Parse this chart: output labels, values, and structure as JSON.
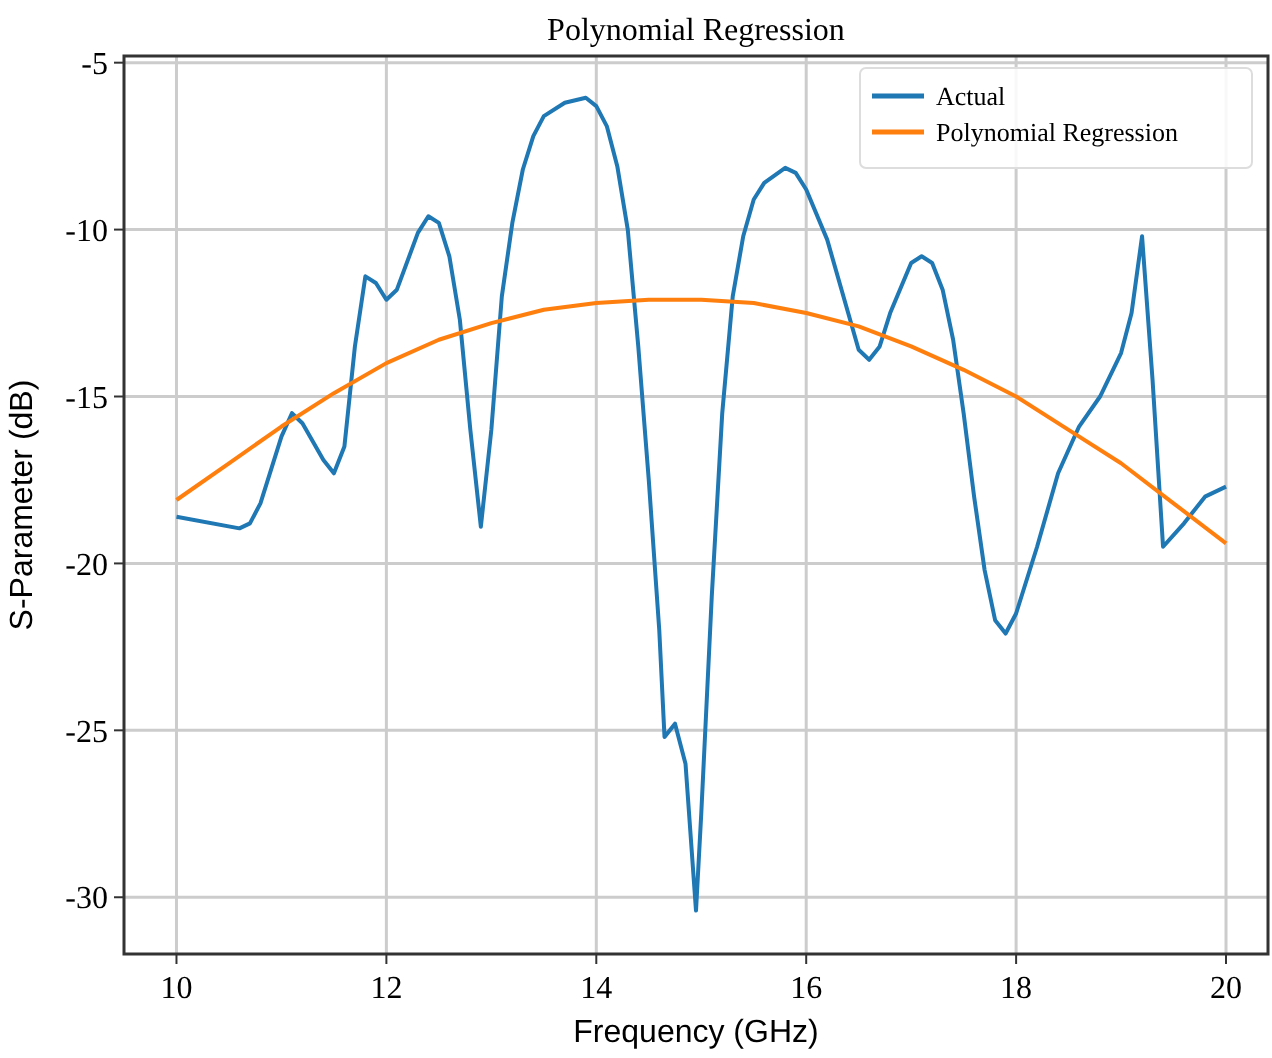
{
  "chart_data": {
    "type": "line",
    "title": "Polynomial Regression",
    "xlabel": "Frequency (GHz)",
    "ylabel": "S-Parameter (dB)",
    "xlim": [
      9.5,
      20.4
    ],
    "ylim": [
      -31.7,
      -4.8
    ],
    "xticks": [
      10,
      12,
      14,
      16,
      18,
      20
    ],
    "yticks": [
      -30,
      -25,
      -20,
      -15,
      -10,
      -5
    ],
    "grid": true,
    "legend": "top right",
    "series": [
      {
        "name": "Actual",
        "color": "#1f77b4",
        "x": [
          10,
          10.6,
          10.7,
          10.8,
          11.0,
          11.1,
          11.2,
          11.4,
          11.5,
          11.6,
          11.7,
          11.8,
          11.9,
          12.0,
          12.1,
          12.3,
          12.4,
          12.5,
          12.6,
          12.7,
          12.8,
          12.9,
          13.0,
          13.1,
          13.2,
          13.3,
          13.4,
          13.5,
          13.7,
          13.9,
          14.0,
          14.1,
          14.2,
          14.3,
          14.4,
          14.5,
          14.6,
          14.65,
          14.75,
          14.85,
          14.95,
          15.0,
          15.1,
          15.2,
          15.3,
          15.4,
          15.5,
          15.6,
          15.8,
          15.9,
          16.0,
          16.2,
          16.4,
          16.5,
          16.6,
          16.7,
          16.8,
          17.0,
          17.1,
          17.2,
          17.3,
          17.4,
          17.5,
          17.6,
          17.7,
          17.8,
          17.9,
          18.0,
          18.2,
          18.4,
          18.6,
          18.8,
          19.0,
          19.1,
          19.2,
          19.3,
          19.4,
          19.6,
          19.8,
          20
        ],
        "values": [
          -18.6,
          -18.95,
          -18.8,
          -18.2,
          -16.2,
          -15.5,
          -15.8,
          -16.9,
          -17.3,
          -16.5,
          -13.5,
          -11.4,
          -11.6,
          -12.1,
          -11.8,
          -10.1,
          -9.6,
          -9.8,
          -10.8,
          -12.7,
          -16,
          -18.9,
          -16,
          -12,
          -9.8,
          -8.2,
          -7.2,
          -6.6,
          -6.2,
          -6.05,
          -6.3,
          -6.9,
          -8.1,
          -10,
          -13.5,
          -17.5,
          -22,
          -25.2,
          -24.8,
          -26,
          -30.4,
          -27.5,
          -21,
          -15.5,
          -12,
          -10.2,
          -9.1,
          -8.6,
          -8.15,
          -8.3,
          -8.8,
          -10.3,
          -12.5,
          -13.6,
          -13.9,
          -13.5,
          -12.5,
          -11.0,
          -10.8,
          -11.0,
          -11.8,
          -13.3,
          -15.5,
          -18,
          -20.2,
          -21.7,
          -22.1,
          -21.5,
          -19.5,
          -17.3,
          -15.9,
          -15,
          -13.7,
          -12.5,
          -10.2,
          -14.5,
          -19.5,
          -18.8,
          -18,
          -17.7
        ]
      },
      {
        "name": "Polynomial Regression",
        "color": "#ff7f0e",
        "x": [
          10,
          10.5,
          11,
          11.5,
          12,
          12.5,
          13,
          13.5,
          14,
          14.5,
          15,
          15.5,
          16,
          16.5,
          17,
          17.5,
          18,
          18.5,
          19,
          19.5,
          20
        ],
        "values": [
          -18.1,
          -17.0,
          -15.9,
          -14.9,
          -14.0,
          -13.3,
          -12.8,
          -12.4,
          -12.2,
          -12.1,
          -12.1,
          -12.2,
          -12.5,
          -12.9,
          -13.5,
          -14.2,
          -15.0,
          -16.0,
          -17.0,
          -18.2,
          -19.4
        ]
      }
    ]
  }
}
